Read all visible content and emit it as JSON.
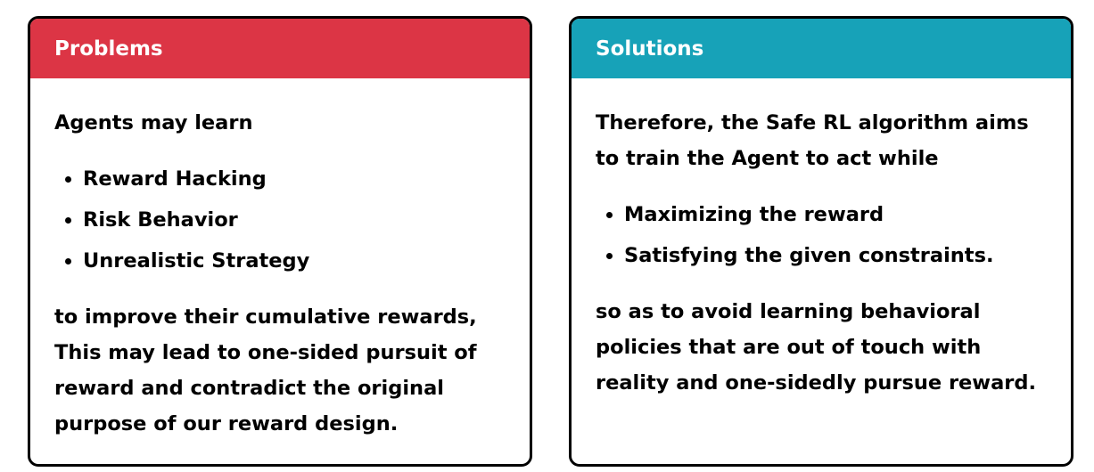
{
  "problems": {
    "title": "Problems",
    "intro": "Agents may learn",
    "items": [
      "Reward Hacking",
      "Risk Behavior",
      "Unrealistic Strategy"
    ],
    "outro_1": "to improve their cumulative rewards, This may lead to ",
    "outro_emph_1": "one-sided pursuit of reward",
    "outro_2": " and ",
    "outro_emph_2": "contradict the original purpose",
    "outro_3": " of our reward design."
  },
  "solutions": {
    "title": "Solutions",
    "intro_1": "Therefore, the ",
    "intro_emph": "Safe RL algorithm aims to",
    "intro_2": " train the Agent to act while",
    "items": [
      "Maximizing the reward",
      "Satisfying the given constraints."
    ],
    "outro": "so as to avoid learning behavioral policies that are out of touch with reality and one-sidedly pursue reward."
  },
  "colors": {
    "problems_header": "#dc3545",
    "solutions_header": "#17a2b8",
    "border": "#000000"
  }
}
